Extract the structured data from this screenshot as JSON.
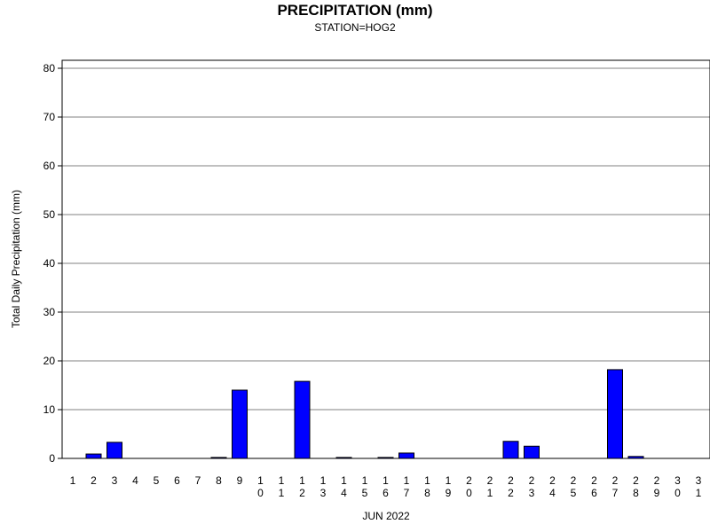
{
  "chart_data": {
    "type": "bar",
    "title": "PRECIPITATION (mm)",
    "subtitle": "STATION=HOG2",
    "xlabel": "JUN 2022",
    "ylabel": "Total Daily Precipitation (mm)",
    "ylim": [
      0,
      80
    ],
    "yticks": [
      0,
      10,
      20,
      30,
      40,
      50,
      60,
      70,
      80
    ],
    "grid": true,
    "bar_color": "#0000ff",
    "categories": [
      "1",
      "2",
      "3",
      "4",
      "5",
      "6",
      "7",
      "8",
      "9",
      "10",
      "11",
      "12",
      "13",
      "14",
      "15",
      "16",
      "17",
      "18",
      "19",
      "20",
      "21",
      "22",
      "23",
      "24",
      "25",
      "26",
      "27",
      "28",
      "29",
      "30",
      "31"
    ],
    "values": [
      0,
      0.9,
      3.3,
      0,
      0,
      0,
      0,
      0.2,
      14.0,
      0,
      0,
      15.8,
      0,
      0.2,
      0,
      0.2,
      1.1,
      0,
      0,
      0,
      0,
      3.5,
      2.5,
      0,
      0,
      0,
      18.2,
      0.4,
      0,
      0,
      0
    ]
  }
}
